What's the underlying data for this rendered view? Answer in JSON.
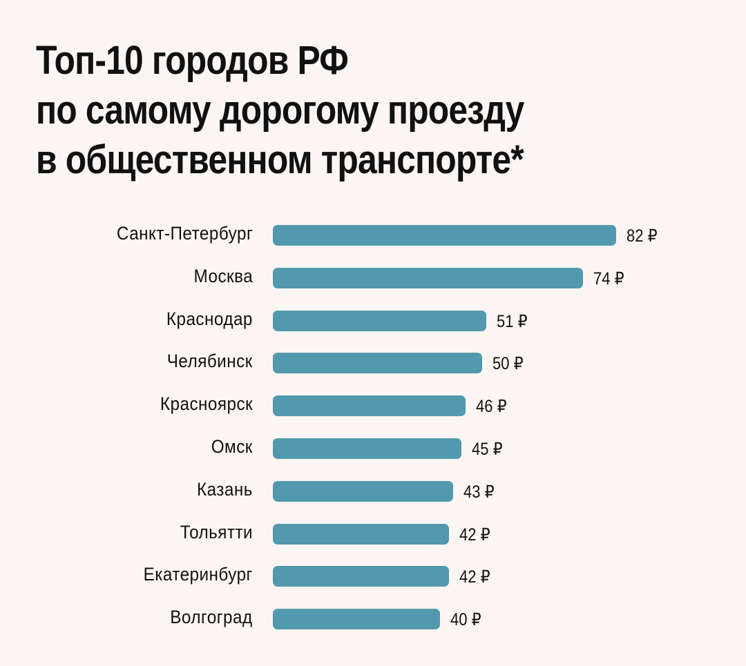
{
  "chart_data": {
    "type": "bar",
    "orientation": "horizontal",
    "title": [
      "Топ-10 городов РФ",
      "по самому дорогому проезду",
      "в общественном транспорте*"
    ],
    "categories": [
      "Санкт-Петербург",
      "Москва",
      "Краснодар",
      "Челябинск",
      "Красноярск",
      "Омск",
      "Казань",
      "Тольятти",
      "Екатеринбург",
      "Волгоград"
    ],
    "values": [
      82,
      74,
      51,
      50,
      46,
      45,
      43,
      42,
      42,
      40
    ],
    "value_suffix": " ₽",
    "bar_color": "#5299ae",
    "background": "#fbf6f3",
    "xlim": [
      0,
      82
    ]
  }
}
